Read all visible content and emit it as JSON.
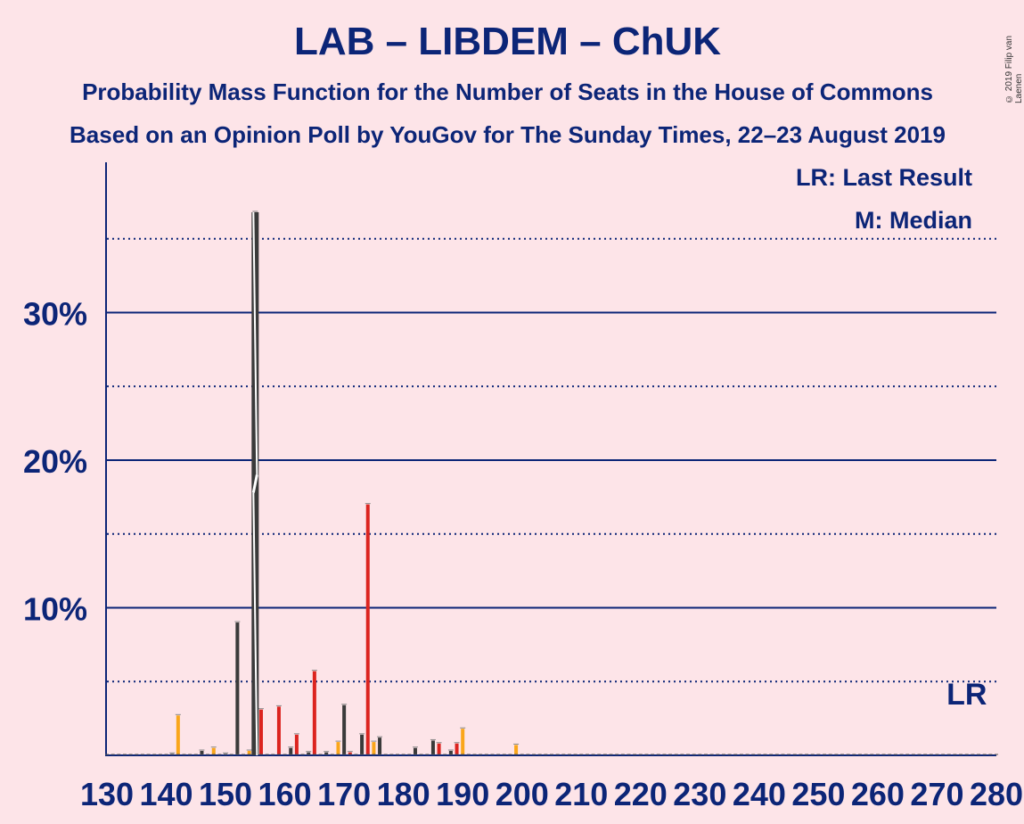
{
  "chart_data": {
    "type": "bar",
    "title": "LAB – LIBDEM – ChUK",
    "subtitle": "Probability Mass Function for the Number of Seats in the House of Commons",
    "subtitle2": "Based on an Opinion Poll by YouGov for The Sunday Times, 22–23 August 2019",
    "copyright": "© 2019 Filip van Laenen",
    "legend": {
      "last_result": "LR: Last Result",
      "median": "M: Median",
      "placement": "top-right"
    },
    "xlabel": "",
    "ylabel": "",
    "xlim": [
      130,
      280
    ],
    "ylim": [
      0,
      40
    ],
    "x_ticks": [
      "130",
      "140",
      "150",
      "160",
      "170",
      "180",
      "190",
      "200",
      "210",
      "220",
      "230",
      "240",
      "250",
      "260",
      "270",
      "280"
    ],
    "y_ticks": [
      {
        "value": 10,
        "label": "10%"
      },
      {
        "value": 20,
        "label": "20%"
      },
      {
        "value": 30,
        "label": "30%"
      }
    ],
    "dotted_gridlines": [
      5,
      15,
      25,
      35
    ],
    "median_seat": 155,
    "last_result_seat": 275,
    "last_result_label": "LR",
    "colors": {
      "dark": "#3a3a3a",
      "red": "#dc241f",
      "orange": "#faa61a",
      "axis": "#0c2577",
      "background": "#fde4e8"
    },
    "bars": [
      {
        "x": 141,
        "value": 0.1,
        "color": "dark"
      },
      {
        "x": 142,
        "value": 2.7,
        "color": "orange"
      },
      {
        "x": 146,
        "value": 0.3,
        "color": "dark"
      },
      {
        "x": 148,
        "value": 0.5,
        "color": "orange"
      },
      {
        "x": 150,
        "value": 0.1,
        "color": "dark"
      },
      {
        "x": 152,
        "value": 9.0,
        "color": "dark"
      },
      {
        "x": 154,
        "value": 0.3,
        "color": "orange"
      },
      {
        "x": 155,
        "value": 36.8,
        "color": "dark"
      },
      {
        "x": 156,
        "value": 3.1,
        "color": "red"
      },
      {
        "x": 159,
        "value": 3.3,
        "color": "red"
      },
      {
        "x": 161,
        "value": 0.5,
        "color": "dark"
      },
      {
        "x": 162,
        "value": 1.4,
        "color": "red"
      },
      {
        "x": 164,
        "value": 0.2,
        "color": "dark"
      },
      {
        "x": 165,
        "value": 5.7,
        "color": "red"
      },
      {
        "x": 167,
        "value": 0.2,
        "color": "dark"
      },
      {
        "x": 169,
        "value": 0.9,
        "color": "orange"
      },
      {
        "x": 170,
        "value": 3.4,
        "color": "dark"
      },
      {
        "x": 171,
        "value": 0.2,
        "color": "red"
      },
      {
        "x": 173,
        "value": 1.4,
        "color": "dark"
      },
      {
        "x": 174,
        "value": 17.0,
        "color": "red"
      },
      {
        "x": 175,
        "value": 0.9,
        "color": "orange"
      },
      {
        "x": 176,
        "value": 1.2,
        "color": "dark"
      },
      {
        "x": 182,
        "value": 0.5,
        "color": "dark"
      },
      {
        "x": 185,
        "value": 1.0,
        "color": "dark"
      },
      {
        "x": 186,
        "value": 0.8,
        "color": "red"
      },
      {
        "x": 188,
        "value": 0.3,
        "color": "dark"
      },
      {
        "x": 189,
        "value": 0.8,
        "color": "red"
      },
      {
        "x": 190,
        "value": 1.8,
        "color": "orange"
      },
      {
        "x": 199,
        "value": 0.7,
        "color": "orange"
      }
    ]
  }
}
